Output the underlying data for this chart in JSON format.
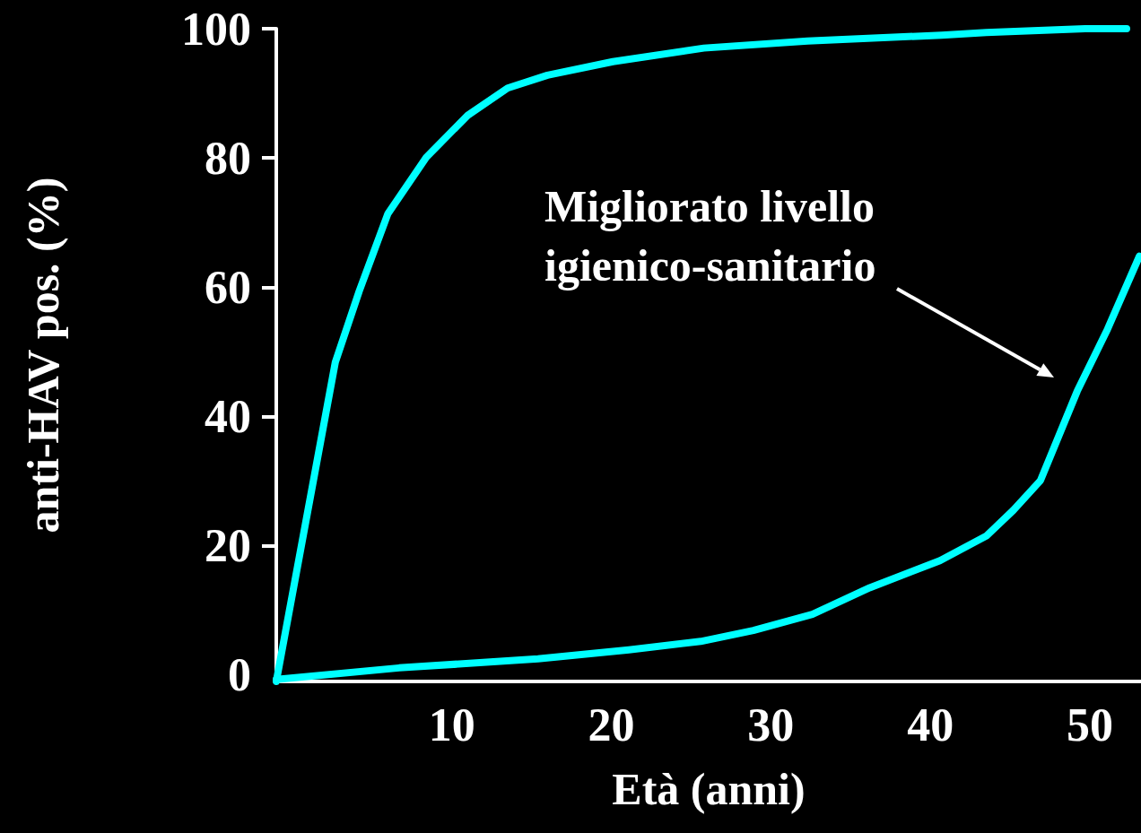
{
  "chart_data": {
    "type": "line",
    "xlabel": "Età (anni)",
    "ylabel": "anti-HAV pos. (%)",
    "xlim": [
      -1,
      53.2
    ],
    "xticks": [
      10,
      20,
      30,
      40,
      50
    ],
    "ylim": [
      -1,
      100
    ],
    "yticks": [
      0,
      20,
      40,
      60,
      80,
      100
    ],
    "marker": "none",
    "line_style": "solid",
    "series": [
      {
        "color": "#00ffff",
        "x": [
          -1,
          2.7,
          4.2,
          6.0,
          8.4,
          11.0,
          13.5,
          16.0,
          20.1,
          25.8,
          32.3,
          40.7,
          43.5,
          49.7,
          52.3
        ],
        "values": [
          -1,
          48.4,
          59.4,
          71.4,
          80.1,
          86.6,
          90.8,
          92.8,
          94.9,
          97.0,
          98.1,
          99.0,
          99.4,
          100,
          100
        ]
      },
      {
        "color": "#00ffff",
        "x": [
          -1,
          6.7,
          15.4,
          21.1,
          25.6,
          28.9,
          32.6,
          36.2,
          40.6,
          43.5,
          45.2,
          46.9,
          49.2,
          51.1,
          53.1
        ],
        "values": [
          -0.7,
          1.1,
          2.5,
          3.9,
          5.2,
          6.9,
          9.4,
          13.5,
          17.7,
          21.5,
          25.5,
          30.1,
          43.9,
          53.5,
          64.8
        ]
      }
    ],
    "annotations": [
      "Migliorato livello\nigienico-sanitario"
    ]
  }
}
